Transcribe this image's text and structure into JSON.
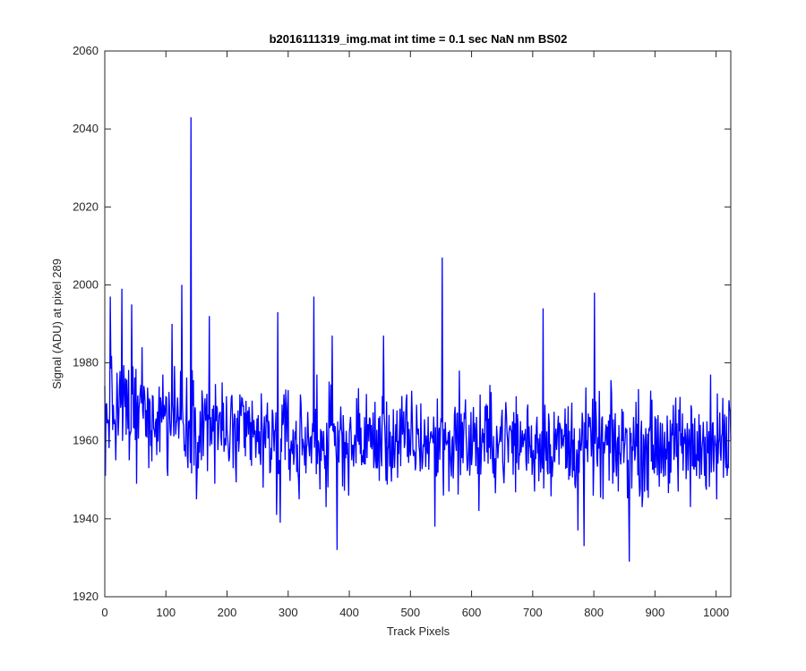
{
  "chart_data": {
    "type": "line",
    "title": "b2016111319_img.mat int time = 0.1 sec  NaN nm BS02",
    "xlabel": "Track Pixels",
    "ylabel": "Signal (ADU) at pixel 289",
    "xlim": [
      0,
      1024
    ],
    "ylim": [
      1920,
      2060
    ],
    "xticks": [
      0,
      100,
      200,
      300,
      400,
      500,
      600,
      700,
      800,
      900,
      1000
    ],
    "yticks": [
      1920,
      1940,
      1960,
      1980,
      2000,
      2020,
      2040,
      2060
    ],
    "grid": false,
    "legend": "none",
    "color": "#0000ff",
    "series": [
      {
        "baseline": [
          [
            0,
            1968
          ],
          [
            50,
            1968
          ],
          [
            100,
            1967
          ],
          [
            150,
            1966
          ],
          [
            200,
            1962
          ],
          [
            250,
            1961
          ],
          [
            300,
            1960
          ],
          [
            400,
            1960
          ],
          [
            500,
            1960
          ],
          [
            600,
            1960
          ],
          [
            700,
            1960
          ],
          [
            800,
            1959
          ],
          [
            900,
            1959
          ],
          [
            1024,
            1959
          ]
        ],
        "noise_amplitude": 9,
        "peaks": [
          [
            1,
            1951
          ],
          [
            9,
            1997
          ],
          [
            18,
            1955
          ],
          [
            28,
            1999
          ],
          [
            40,
            1955
          ],
          [
            44,
            1995
          ],
          [
            52,
            1949
          ],
          [
            61,
            1984
          ],
          [
            72,
            1953
          ],
          [
            95,
            1977
          ],
          [
            103,
            1951
          ],
          [
            110,
            1990
          ],
          [
            126,
            2000
          ],
          [
            136,
            1953
          ],
          [
            141,
            2043
          ],
          [
            150,
            1945
          ],
          [
            158,
            1955
          ],
          [
            171,
            1992
          ],
          [
            180,
            1949
          ],
          [
            192,
            1975
          ],
          [
            210,
            1953
          ],
          [
            230,
            1956
          ],
          [
            259,
            1948
          ],
          [
            281,
            1941
          ],
          [
            283,
            1993
          ],
          [
            287,
            1939
          ],
          [
            300,
            1973
          ],
          [
            314,
            1952
          ],
          [
            318,
            1945
          ],
          [
            342,
            1997
          ],
          [
            347,
            1977
          ],
          [
            362,
            1943
          ],
          [
            372,
            1987
          ],
          [
            380,
            1932
          ],
          [
            404,
            1955
          ],
          [
            428,
            1972
          ],
          [
            440,
            1953
          ],
          [
            456,
            1987
          ],
          [
            480,
            1960
          ],
          [
            540,
            1938
          ],
          [
            552,
            2007
          ],
          [
            563,
            1947
          ],
          [
            580,
            1978
          ],
          [
            612,
            1942
          ],
          [
            650,
            1968
          ],
          [
            681,
            1957
          ],
          [
            703,
            1947
          ],
          [
            717,
            1994
          ],
          [
            731,
            1956
          ],
          [
            761,
            1951
          ],
          [
            774,
            1937
          ],
          [
            784,
            1933
          ],
          [
            801,
            1998
          ],
          [
            815,
            1945
          ],
          [
            840,
            1947
          ],
          [
            858,
            1929
          ],
          [
            879,
            1943
          ],
          [
            906,
            1957
          ],
          [
            938,
            1947
          ],
          [
            958,
            1943
          ],
          [
            968,
            1951
          ],
          [
            985,
            1965
          ],
          [
            991,
            1977
          ],
          [
            1001,
            1945
          ],
          [
            1011,
            1971
          ],
          [
            1016,
            1953
          ]
        ]
      }
    ]
  }
}
